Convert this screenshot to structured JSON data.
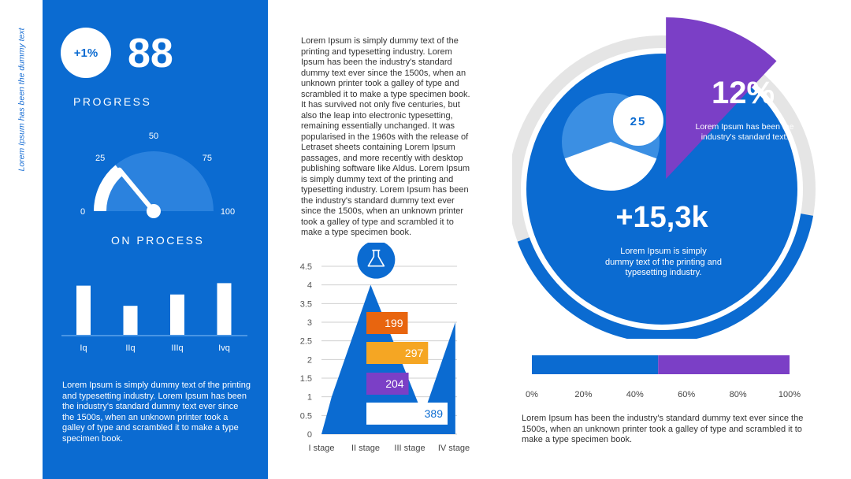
{
  "sidebar": {
    "vertical_text": "Lorem Ipsum has been the dummy text"
  },
  "panel": {
    "badge": "+1%",
    "big_number": "88",
    "progress_label": "PROGRESS",
    "on_process_label": "ON PROCESS",
    "paragraph": "Lorem Ipsum is simply dummy text of the printing and typesetting industry. Lorem Ipsum has been the industry's standard dummy text ever since the 1500s, when an unknown printer took a galley of type and scrambled it to make a type specimen book."
  },
  "middle": {
    "paragraph": "Lorem Ipsum is simply dummy text of the printing and typesetting industry. Lorem Ipsum has been the industry's standard dummy text ever since the 1500s, when an unknown printer took a galley of type and scrambled it to make a type specimen book. It has survived not only five centuries, but also the leap into electronic typesetting, remaining essentially unchanged. It was popularised in the 1960s with the release of Letraset sheets containing Lorem Ipsum passages, and more recently with desktop publishing software like Aldus. Lorem Ipsum is simply dummy text of the printing and typesetting industry. Lorem Ipsum has been the industry's standard dummy text ever since the 1500s, when an unknown printer took a galley of type and scrambled it to make a type specimen book."
  },
  "right": {
    "inner_badge": "25",
    "pct_label": "12%",
    "pct_caption": "Lorem Ipsum has been the industry's standard text.",
    "big_number": "+15,3k",
    "big_caption": "Lorem Ipsum is simply dummy text of the printing and typesetting industry.",
    "bottom_paragraph": "Lorem Ipsum has been the industry's standard dummy text ever since the 1500s, when an unknown printer took a galley of type and scrambled it to make a type specimen book."
  },
  "colors": {
    "blue": "#0b6bd1",
    "purple": "#7b3fc6",
    "orange": "#e8650f",
    "yellow": "#f5a623",
    "gray": "#e5e5e5"
  },
  "chart_data": [
    {
      "type": "gauge",
      "min": 0,
      "max": 100,
      "ticks": [
        0,
        25,
        50,
        75,
        100
      ],
      "value": 28
    },
    {
      "type": "bar",
      "categories": [
        "Iq",
        "IIq",
        "IIIq",
        "Ivq"
      ],
      "values": [
        78,
        46,
        64,
        82
      ],
      "ylim": [
        0,
        100
      ]
    },
    {
      "type": "area",
      "categories": [
        "I stage",
        "II stage",
        "III stage",
        "IV stage"
      ],
      "x": [
        0.3,
        1.45,
        3.0,
        3.95
      ],
      "y": [
        1.0,
        4.0,
        0.5,
        3.0
      ],
      "yticks": [
        0,
        0.5,
        1,
        1.5,
        2,
        2.5,
        3,
        3.5,
        4,
        4.5
      ],
      "ylim": [
        0,
        4.5
      ],
      "boxes": [
        {
          "label": "199",
          "color": "#e8650f",
          "fraction": 0.51
        },
        {
          "label": "297",
          "color": "#f5a623",
          "fraction": 0.76
        },
        {
          "label": "204",
          "color": "#7b3fc6",
          "fraction": 0.52
        },
        {
          "label": "389",
          "color": "#ffffff",
          "fraction": 1.0
        }
      ]
    },
    {
      "type": "pie",
      "slices": [
        {
          "label": "12%",
          "value": 12,
          "color": "#7b3fc6"
        },
        {
          "label": "",
          "value": 88,
          "color": "#0b6bd1"
        }
      ]
    },
    {
      "type": "bar",
      "orientation": "horizontal-stacked",
      "ticks": [
        "0%",
        "20%",
        "40%",
        "60%",
        "80%",
        "100%"
      ],
      "segments": [
        {
          "value": 49,
          "color": "#0b6bd1"
        },
        {
          "value": 51,
          "color": "#7b3fc6"
        }
      ]
    }
  ]
}
